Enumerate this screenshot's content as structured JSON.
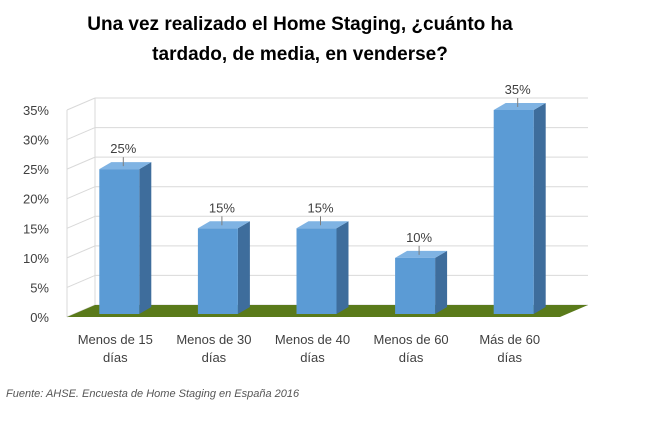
{
  "chart_data": {
    "type": "bar",
    "title_lines": [
      "Una vez realizado el Home Staging, ¿cuánto ha",
      "tardado, de media, en venderse?"
    ],
    "categories": [
      [
        "Menos de 15",
        "días"
      ],
      [
        "Menos de 30",
        "días"
      ],
      [
        "Menos de 40",
        "días"
      ],
      [
        "Menos de 60",
        "días"
      ],
      [
        "Más de 60",
        "días"
      ]
    ],
    "values": [
      25,
      15,
      15,
      10,
      35
    ],
    "data_labels": [
      "25%",
      "15%",
      "15%",
      "10%",
      "35%"
    ],
    "ylim": [
      0,
      35
    ],
    "yticks": [
      0,
      5,
      10,
      15,
      20,
      25,
      30,
      35
    ],
    "ytick_labels": [
      "0%",
      "5%",
      "10%",
      "15%",
      "20%",
      "25%",
      "30%",
      "35%"
    ],
    "grid": true,
    "style": "3d-column",
    "colors": {
      "bar_front": "#5b9bd5",
      "bar_side": "#3e6d9c",
      "bar_top": "#7fb3e3",
      "floor": "#5a7a1a",
      "grid": "#d9d9d9",
      "axis_text": "#404040"
    }
  },
  "source": "Fuente: AHSE. Encuesta de Home Staging en España 2016"
}
